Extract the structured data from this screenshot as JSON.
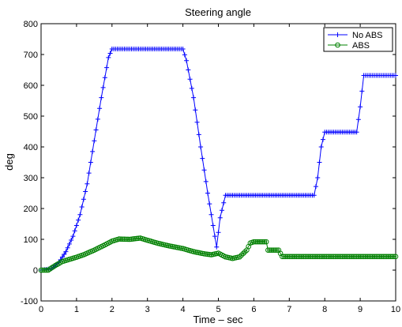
{
  "chart_data": {
    "type": "line",
    "title": "Steering angle",
    "xlabel": "Time – sec",
    "ylabel": "deg",
    "xlim": [
      0,
      10
    ],
    "ylim": [
      -100,
      800
    ],
    "xticks": [
      0,
      1,
      2,
      3,
      4,
      5,
      6,
      7,
      8,
      9,
      10
    ],
    "yticks": [
      -100,
      0,
      100,
      200,
      300,
      400,
      500,
      600,
      700,
      800
    ],
    "grid": false,
    "legend_position": "top-right",
    "series": [
      {
        "name": "No ABS",
        "color": "#0000ff",
        "marker": "plus",
        "x": [
          0,
          0.3,
          0.5,
          0.7,
          0.9,
          1.1,
          1.3,
          1.5,
          1.7,
          1.9,
          2.0,
          2.5,
          3.0,
          3.5,
          4.0,
          4.1,
          4.3,
          4.5,
          4.7,
          4.9,
          4.95,
          5.05,
          5.2,
          6.0,
          7.0,
          7.7,
          7.8,
          7.9,
          8.0,
          8.5,
          8.9,
          9.0,
          9.1,
          9.5,
          10.0
        ],
        "y": [
          0,
          5,
          25,
          60,
          110,
          180,
          280,
          420,
          560,
          690,
          718,
          718,
          718,
          718,
          718,
          680,
          560,
          400,
          250,
          110,
          75,
          170,
          243,
          243,
          243,
          243,
          300,
          400,
          448,
          448,
          448,
          530,
          632,
          632,
          632
        ]
      },
      {
        "name": "ABS",
        "color": "#008000",
        "marker": "circle",
        "x": [
          0,
          0.2,
          0.4,
          0.6,
          0.8,
          1.0,
          1.2,
          1.5,
          1.8,
          2.0,
          2.2,
          2.5,
          2.8,
          3.0,
          3.3,
          3.6,
          4.0,
          4.3,
          4.6,
          4.8,
          5.0,
          5.2,
          5.4,
          5.6,
          5.8,
          5.9,
          6.0,
          6.2,
          6.35,
          6.4,
          6.5,
          6.6,
          6.7,
          6.8,
          7.0,
          8.0,
          9.0,
          10.0
        ],
        "y": [
          0,
          0,
          15,
          28,
          35,
          42,
          50,
          65,
          82,
          94,
          101,
          100,
          104,
          97,
          87,
          79,
          70,
          60,
          53,
          50,
          55,
          43,
          38,
          43,
          65,
          88,
          92,
          92,
          92,
          65,
          65,
          65,
          65,
          44,
          44,
          44,
          44,
          44
        ]
      }
    ]
  }
}
